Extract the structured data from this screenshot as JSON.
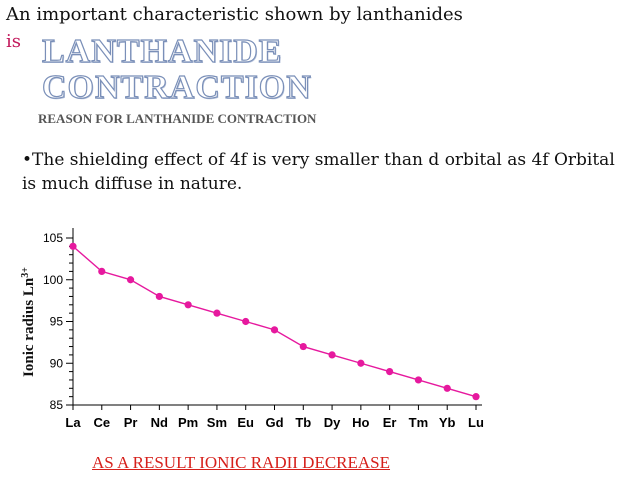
{
  "slide": {
    "intro": "An important characteristic shown by lanthanides",
    "is_word": "is",
    "headline_line1": "LANTHANIDE",
    "headline_line2": "CONTRACTION",
    "reason_heading": "REASON FOR LANTHANIDE CONTRACTION",
    "bullet": "•The shielding effect of 4f is very smaller  than d orbital as 4f Orbital is much diffuse in nature.",
    "conclusion": "AS A RESULT IONIC RADII DECREASE"
  },
  "colors": {
    "point": "#e6199e",
    "line": "#e6199e",
    "conclusion": "#d6201b"
  },
  "chart_data": {
    "type": "line",
    "categories": [
      "La",
      "Ce",
      "Pr",
      "Nd",
      "Pm",
      "Sm",
      "Eu",
      "Gd",
      "Tb",
      "Dy",
      "Ho",
      "Er",
      "Tm",
      "Yb",
      "Lu"
    ],
    "values": [
      104,
      101,
      100,
      98,
      97,
      96,
      95,
      94,
      92,
      91,
      90,
      89,
      88,
      87,
      86
    ],
    "ylabel": "Ionic radius Ln3+",
    "ylim": [
      85,
      105
    ],
    "yticks": [
      85,
      90,
      95,
      100,
      105
    ],
    "grid": false,
    "legend": "none"
  }
}
